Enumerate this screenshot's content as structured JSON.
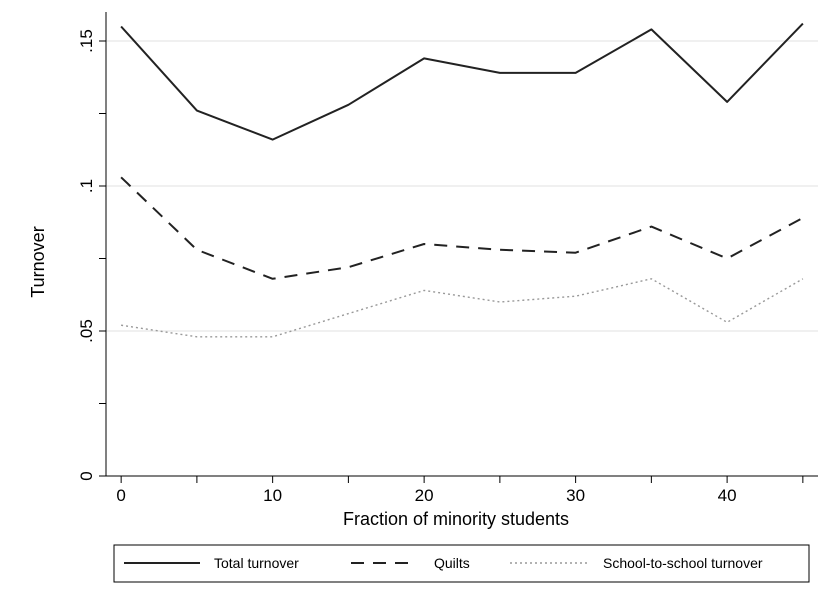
{
  "chart_data": {
    "type": "line",
    "xlabel": "Fraction of minority students",
    "ylabel": "Turnover",
    "xlim": [
      -1,
      46
    ],
    "ylim": [
      0,
      0.16
    ],
    "xticks": [
      0,
      10,
      20,
      30,
      40
    ],
    "xtick_labels": [
      "0",
      "10",
      "20",
      "30",
      "40"
    ],
    "yticks": [
      0,
      0.05,
      0.1,
      0.15
    ],
    "ytick_labels": [
      "0",
      ".05",
      ".1",
      ".15"
    ],
    "grid": "horizontal",
    "legend_position": "bottom",
    "x": [
      0,
      5,
      10,
      15,
      20,
      25,
      30,
      35,
      40,
      45
    ],
    "series": [
      {
        "name": "Total turnover",
        "style": "solid",
        "color": "#222222",
        "values": [
          0.155,
          0.126,
          0.116,
          0.128,
          0.144,
          0.139,
          0.139,
          0.154,
          0.129,
          0.156
        ]
      },
      {
        "name": "Quilts",
        "style": "dashed",
        "color": "#222222",
        "values": [
          0.103,
          0.078,
          0.068,
          0.072,
          0.08,
          0.078,
          0.077,
          0.086,
          0.075,
          0.089
        ]
      },
      {
        "name": "School-to-school turnover",
        "style": "dotted",
        "color": "#999999",
        "values": [
          0.052,
          0.048,
          0.048,
          0.056,
          0.064,
          0.06,
          0.062,
          0.068,
          0.053,
          0.068
        ]
      }
    ]
  }
}
